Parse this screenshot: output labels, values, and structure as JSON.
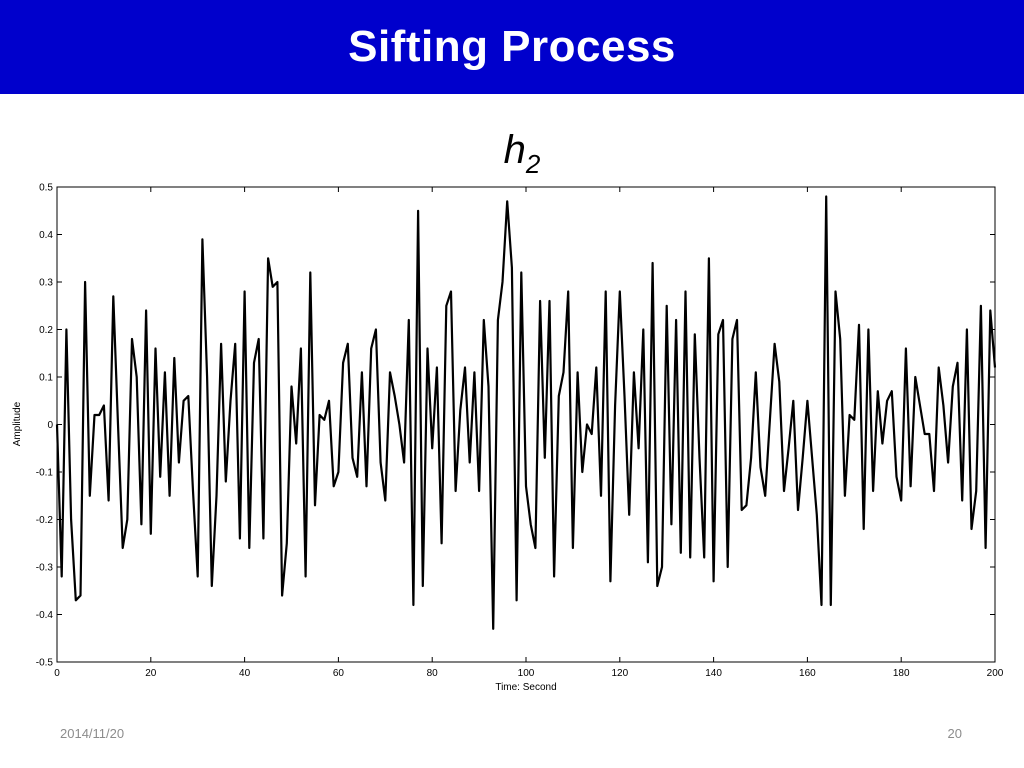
{
  "slide": {
    "title": "Sifting Process",
    "subtitle_base": "h",
    "subtitle_sub": "2",
    "footer_date": "2014/11/20",
    "page_number": "20"
  },
  "colors": {
    "title_bar": "#0000cc",
    "title_text": "#ffffff",
    "line": "#000000",
    "footer_text": "#8c8c8c"
  },
  "chart_data": {
    "type": "line",
    "title": "",
    "xlabel": "Time: Second",
    "ylabel": "Amplitude",
    "xlim": [
      0,
      200
    ],
    "ylim": [
      -0.5,
      0.5
    ],
    "xticks": [
      0,
      20,
      40,
      60,
      80,
      100,
      120,
      140,
      160,
      180,
      200
    ],
    "yticks": [
      -0.5,
      -0.4,
      -0.3,
      -0.2,
      -0.1,
      0,
      0.1,
      0.2,
      0.3,
      0.4,
      0.5
    ],
    "grid": false,
    "series": [
      {
        "color": "#000000",
        "x": [
          0,
          1,
          2,
          3,
          4,
          5,
          6,
          7,
          8,
          9,
          10,
          11,
          12,
          13,
          14,
          15,
          16,
          17,
          18,
          19,
          20,
          21,
          22,
          23,
          24,
          25,
          26,
          27,
          28,
          29,
          30,
          31,
          32,
          33,
          34,
          35,
          36,
          37,
          38,
          39,
          40,
          41,
          42,
          43,
          44,
          45,
          46,
          47,
          48,
          49,
          50,
          51,
          52,
          53,
          54,
          55,
          56,
          57,
          58,
          59,
          60,
          61,
          62,
          63,
          64,
          65,
          66,
          67,
          68,
          69,
          70,
          71,
          72,
          73,
          74,
          75,
          76,
          77,
          78,
          79,
          80,
          81,
          82,
          83,
          84,
          85,
          86,
          87,
          88,
          89,
          90,
          91,
          92,
          93,
          94,
          95,
          96,
          97,
          98,
          99,
          100,
          101,
          102,
          103,
          104,
          105,
          106,
          107,
          108,
          109,
          110,
          111,
          112,
          113,
          114,
          115,
          116,
          117,
          118,
          119,
          120,
          121,
          122,
          123,
          124,
          125,
          126,
          127,
          128,
          129,
          130,
          131,
          132,
          133,
          134,
          135,
          136,
          137,
          138,
          139,
          140,
          141,
          142,
          143,
          144,
          145,
          146,
          147,
          148,
          149,
          150,
          151,
          152,
          153,
          154,
          155,
          156,
          157,
          158,
          159,
          160,
          161,
          162,
          163,
          164,
          165,
          166,
          167,
          168,
          169,
          170,
          171,
          172,
          173,
          174,
          175,
          176,
          177,
          178,
          179,
          180,
          181,
          182,
          183,
          184,
          185,
          186,
          187,
          188,
          189,
          190,
          191,
          192,
          193,
          194,
          195,
          196,
          197,
          198,
          199,
          200
        ],
        "y": [
          0.0,
          -0.32,
          0.2,
          -0.2,
          -0.37,
          -0.36,
          0.3,
          -0.15,
          0.02,
          0.02,
          0.04,
          -0.16,
          0.27,
          0.0,
          -0.26,
          -0.2,
          0.18,
          0.1,
          -0.21,
          0.24,
          -0.23,
          0.16,
          -0.11,
          0.11,
          -0.15,
          0.14,
          -0.08,
          0.05,
          0.06,
          -0.14,
          -0.32,
          0.39,
          0.1,
          -0.34,
          -0.15,
          0.17,
          -0.12,
          0.05,
          0.17,
          -0.24,
          0.28,
          -0.26,
          0.13,
          0.18,
          -0.24,
          0.35,
          0.29,
          0.3,
          -0.36,
          -0.25,
          0.08,
          -0.04,
          0.16,
          -0.32,
          0.32,
          -0.17,
          0.02,
          0.01,
          0.05,
          -0.13,
          -0.1,
          0.13,
          0.17,
          -0.07,
          -0.11,
          0.11,
          -0.13,
          0.16,
          0.2,
          -0.08,
          -0.16,
          0.11,
          0.06,
          0.0,
          -0.08,
          0.22,
          -0.38,
          0.45,
          -0.34,
          0.16,
          -0.05,
          0.12,
          -0.25,
          0.25,
          0.28,
          -0.14,
          0.03,
          0.12,
          -0.08,
          0.11,
          -0.14,
          0.22,
          0.08,
          -0.43,
          0.22,
          0.3,
          0.47,
          0.33,
          -0.37,
          0.32,
          -0.13,
          -0.21,
          -0.26,
          0.26,
          -0.07,
          0.26,
          -0.32,
          0.06,
          0.11,
          0.28,
          -0.26,
          0.11,
          -0.1,
          0.0,
          -0.02,
          0.12,
          -0.15,
          0.28,
          -0.33,
          0.04,
          0.28,
          0.06,
          -0.19,
          0.11,
          -0.05,
          0.2,
          -0.29,
          0.34,
          -0.34,
          -0.3,
          0.25,
          -0.21,
          0.22,
          -0.27,
          0.28,
          -0.28,
          0.19,
          -0.07,
          -0.28,
          0.35,
          -0.33,
          0.19,
          0.22,
          -0.3,
          0.18,
          0.22,
          -0.18,
          -0.17,
          -0.07,
          0.11,
          -0.09,
          -0.15,
          0.01,
          0.17,
          0.09,
          -0.14,
          -0.05,
          0.05,
          -0.18,
          -0.07,
          0.05,
          -0.07,
          -0.19,
          -0.38,
          0.48,
          -0.38,
          0.28,
          0.18,
          -0.15,
          0.02,
          0.01,
          0.21,
          -0.22,
          0.2,
          -0.14,
          0.07,
          -0.04,
          0.05,
          0.07,
          -0.11,
          -0.16,
          0.16,
          -0.13,
          0.1,
          0.04,
          -0.02,
          -0.02,
          -0.14,
          0.12,
          0.04,
          -0.08,
          0.08,
          0.13,
          -0.16,
          0.2,
          -0.22,
          -0.14,
          0.25,
          -0.26,
          0.24,
          0.12
        ]
      }
    ]
  }
}
